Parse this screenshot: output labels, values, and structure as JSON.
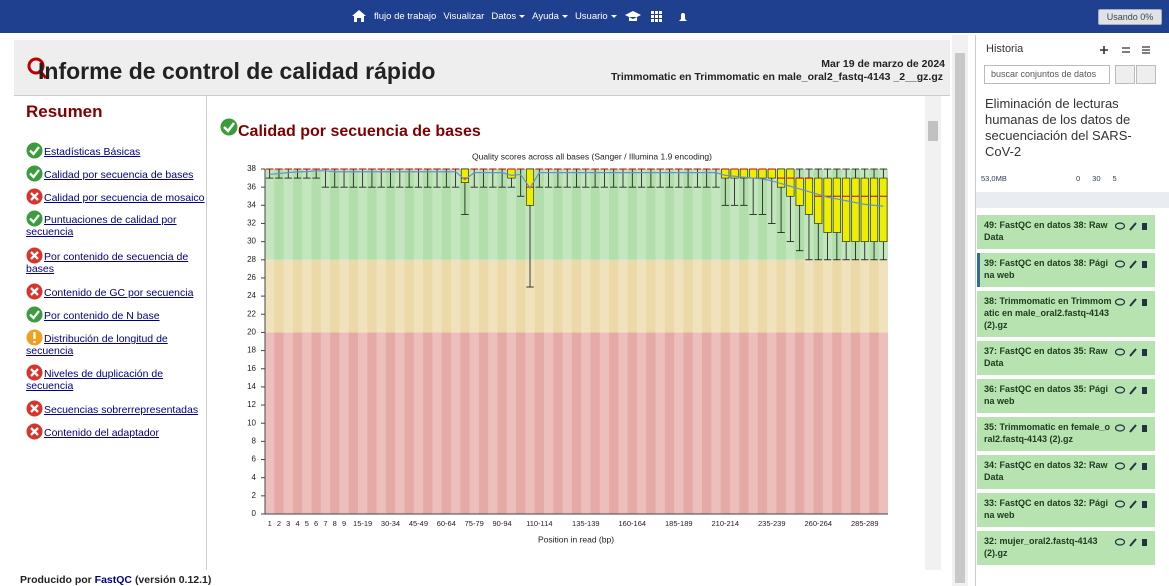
{
  "navbar": {
    "items": [
      "flujo de trabajo",
      "Visualizar",
      "Datos",
      "Ayuda",
      "Usuario"
    ],
    "dropdown": [
      false,
      false,
      true,
      true,
      true
    ],
    "quota": "Usando 0%"
  },
  "report": {
    "title": "Informe de control de calidad rápido",
    "date": "Mar 19 de marzo de 2024",
    "file": "Trimmomatic en Trimmomatic en male_oral2_fastq-4143 _2__gz.gz",
    "summary_title": "Resumen",
    "summary": [
      {
        "label": "Estadísticas Básicas",
        "status": "pass"
      },
      {
        "label": "Calidad por secuencia de bases",
        "status": "pass"
      },
      {
        "label": "Calidad por secuencia de mosaico",
        "status": "fail"
      },
      {
        "label": "Puntuaciones de calidad por secuencia",
        "status": "pass"
      },
      {
        "label": "Por contenido de secuencia de bases",
        "status": "fail"
      },
      {
        "label": "Contenido de GC por secuencia",
        "status": "fail"
      },
      {
        "label": "Por contenido de N base",
        "status": "pass"
      },
      {
        "label": "Distribución de longitud de secuencia",
        "status": "warn"
      },
      {
        "label": "Niveles de duplicación de secuencia",
        "status": "fail"
      },
      {
        "label": "Secuencias sobrerrepresentadas",
        "status": "fail"
      },
      {
        "label": "Contenido del adaptador",
        "status": "fail"
      }
    ],
    "section_title": "Calidad por secuencia de bases",
    "footer": [
      "Producido por",
      "FastQC",
      "(versión 0.12.1)"
    ]
  },
  "chart_data": {
    "type": "box",
    "title": "Quality scores across all bases (Sanger / Illumina 1.9 encoding)",
    "x_label": "Position in read (bp)",
    "categories": [
      "1",
      "2",
      "3",
      "4",
      "5",
      "6",
      "7",
      "8",
      "9",
      null,
      "15-19",
      null,
      null,
      "30-34",
      null,
      null,
      "45-49",
      null,
      null,
      "60-64",
      null,
      null,
      "75-79",
      null,
      null,
      "90-94",
      null,
      null,
      null,
      "110-114",
      null,
      null,
      null,
      null,
      "135-139",
      null,
      null,
      null,
      null,
      "160-164",
      null,
      null,
      null,
      null,
      "185-189",
      null,
      null,
      null,
      null,
      "210-214",
      null,
      null,
      null,
      null,
      "235-239",
      null,
      null,
      null,
      null,
      "260-264",
      null,
      null,
      null,
      null,
      "285-289",
      null,
      null
    ],
    "low": [
      37,
      37,
      37,
      37,
      37,
      37,
      36,
      36,
      36,
      36,
      36,
      36,
      36,
      36,
      36,
      36,
      36,
      36,
      36,
      36,
      36,
      33,
      36,
      36,
      36,
      36,
      36,
      35,
      25,
      36,
      36,
      36,
      36,
      36,
      36,
      36,
      36,
      36,
      36,
      36,
      36,
      36,
      36,
      36,
      36,
      36,
      36,
      36,
      36,
      34,
      34,
      34,
      33,
      33,
      32,
      31,
      30,
      29,
      28,
      28,
      28,
      28,
      28,
      28,
      28,
      28,
      28
    ],
    "q1": [
      38,
      38,
      38,
      38,
      38,
      38,
      38,
      38,
      38,
      38,
      38,
      38,
      38,
      38,
      38,
      38,
      38,
      38,
      38,
      38,
      38,
      36.5,
      38,
      38,
      38,
      38,
      37,
      38,
      34,
      38,
      38,
      38,
      38,
      38,
      38,
      38,
      38,
      38,
      38,
      38,
      38,
      38,
      38,
      38,
      38,
      38,
      38,
      38,
      38,
      37,
      37,
      37,
      37,
      37,
      37,
      36,
      35,
      34,
      33,
      32,
      31,
      31,
      30,
      30,
      30,
      30,
      30
    ],
    "median": [
      38,
      38,
      38,
      38,
      38,
      38,
      38,
      38,
      38,
      38,
      38,
      38,
      38,
      38,
      38,
      38,
      38,
      38,
      38,
      38,
      38,
      37,
      38,
      38,
      38,
      38,
      38,
      38,
      36,
      38,
      38,
      38,
      38,
      38,
      38,
      38,
      38,
      38,
      38,
      38,
      38,
      38,
      38,
      38,
      38,
      38,
      38,
      38,
      38,
      38,
      38,
      38,
      38,
      38,
      38,
      37,
      37,
      37,
      37,
      35,
      35,
      35,
      35,
      35,
      35,
      35,
      35
    ],
    "q3": [
      38,
      38,
      38,
      38,
      38,
      38,
      38,
      38,
      38,
      38,
      38,
      38,
      38,
      38,
      38,
      38,
      38,
      38,
      38,
      38,
      38,
      38,
      38,
      38,
      38,
      38,
      38,
      38,
      38,
      38,
      38,
      38,
      38,
      38,
      38,
      38,
      38,
      38,
      38,
      38,
      38,
      38,
      38,
      38,
      38,
      38,
      38,
      38,
      38,
      38,
      38,
      38,
      38,
      38,
      38,
      38,
      38,
      37,
      37,
      37,
      37,
      37,
      37,
      37,
      37,
      37,
      37
    ],
    "high": [
      38,
      38,
      38,
      38,
      38,
      38,
      38,
      38,
      38,
      38,
      38,
      38,
      38,
      38,
      38,
      38,
      38,
      38,
      38,
      38,
      38,
      38,
      38,
      38,
      38,
      38,
      38,
      38,
      38,
      38,
      38,
      38,
      38,
      38,
      38,
      38,
      38,
      38,
      38,
      38,
      38,
      38,
      38,
      38,
      38,
      38,
      38,
      38,
      38,
      38,
      38,
      38,
      38,
      38,
      38,
      38,
      38,
      38,
      38,
      38,
      38,
      38,
      38,
      38,
      38,
      38,
      38
    ],
    "mean": [
      37.4,
      37.5,
      37.6,
      37.7,
      37.7,
      37.8,
      37.8,
      37.7,
      37.7,
      37.7,
      37.7,
      37.7,
      37.7,
      37.7,
      37.7,
      37.7,
      37.7,
      37.7,
      37.7,
      37.7,
      37.7,
      36.8,
      37.6,
      37.6,
      37.6,
      37.6,
      37.3,
      37.4,
      35.9,
      37.6,
      37.6,
      37.6,
      37.6,
      37.6,
      37.6,
      37.6,
      37.6,
      37.6,
      37.6,
      37.6,
      37.6,
      37.6,
      37.6,
      37.6,
      37.6,
      37.6,
      37.6,
      37.6,
      37.6,
      37.3,
      37.2,
      37.1,
      37.0,
      36.9,
      36.7,
      36.4,
      36.1,
      35.8,
      35.5,
      35.2,
      34.9,
      34.7,
      34.5,
      34.3,
      34.1,
      34.0,
      33.9
    ],
    "box_color": "#eeee00",
    "median_color": "#cc0000",
    "mean_color": "#6a8fd0",
    "zones": [
      {
        "from": 0,
        "to": 20,
        "color": "#e6aaa6"
      },
      {
        "from": 20,
        "to": 28,
        "color": "#ecd9a8"
      },
      {
        "from": 28,
        "to": 38,
        "color": "#b1deaa"
      }
    ],
    "ylim": [
      0,
      38
    ],
    "yticks": [
      0,
      2,
      4,
      6,
      8,
      10,
      12,
      14,
      16,
      18,
      20,
      22,
      24,
      26,
      28,
      30,
      32,
      34,
      36,
      38
    ]
  },
  "history": {
    "title": "Historia",
    "search": "buscar conjuntos de datos",
    "name": "Eliminación de lecturas humanas de los datos de secuenciación del SARS-CoV-2",
    "size": "53,0MB",
    "counts": [
      "0",
      "30",
      "5"
    ],
    "items": [
      {
        "label": "49: FastQC en datos 38: RawData",
        "selected": false
      },
      {
        "label": "39: FastQC en datos 38: Página web",
        "selected": true
      },
      {
        "label": "38: Trimmomatic en Trimmomatic en male_oral2.fastq-4143 (2).gz",
        "selected": false
      },
      {
        "label": "37: FastQC en datos 35: RawData",
        "selected": false
      },
      {
        "label": "36: FastQC en datos 35: Página web",
        "selected": false
      },
      {
        "label": "35: Trimmomatic en female_oral2.fastq-4143 (2).gz",
        "selected": false
      },
      {
        "label": "34: FastQC en datos 32: RawData",
        "selected": false
      },
      {
        "label": "33: FastQC en datos 32: Página web",
        "selected": false
      },
      {
        "label": "32: mujer_oral2.fastq-4143 (2).gz",
        "selected": false
      }
    ]
  }
}
